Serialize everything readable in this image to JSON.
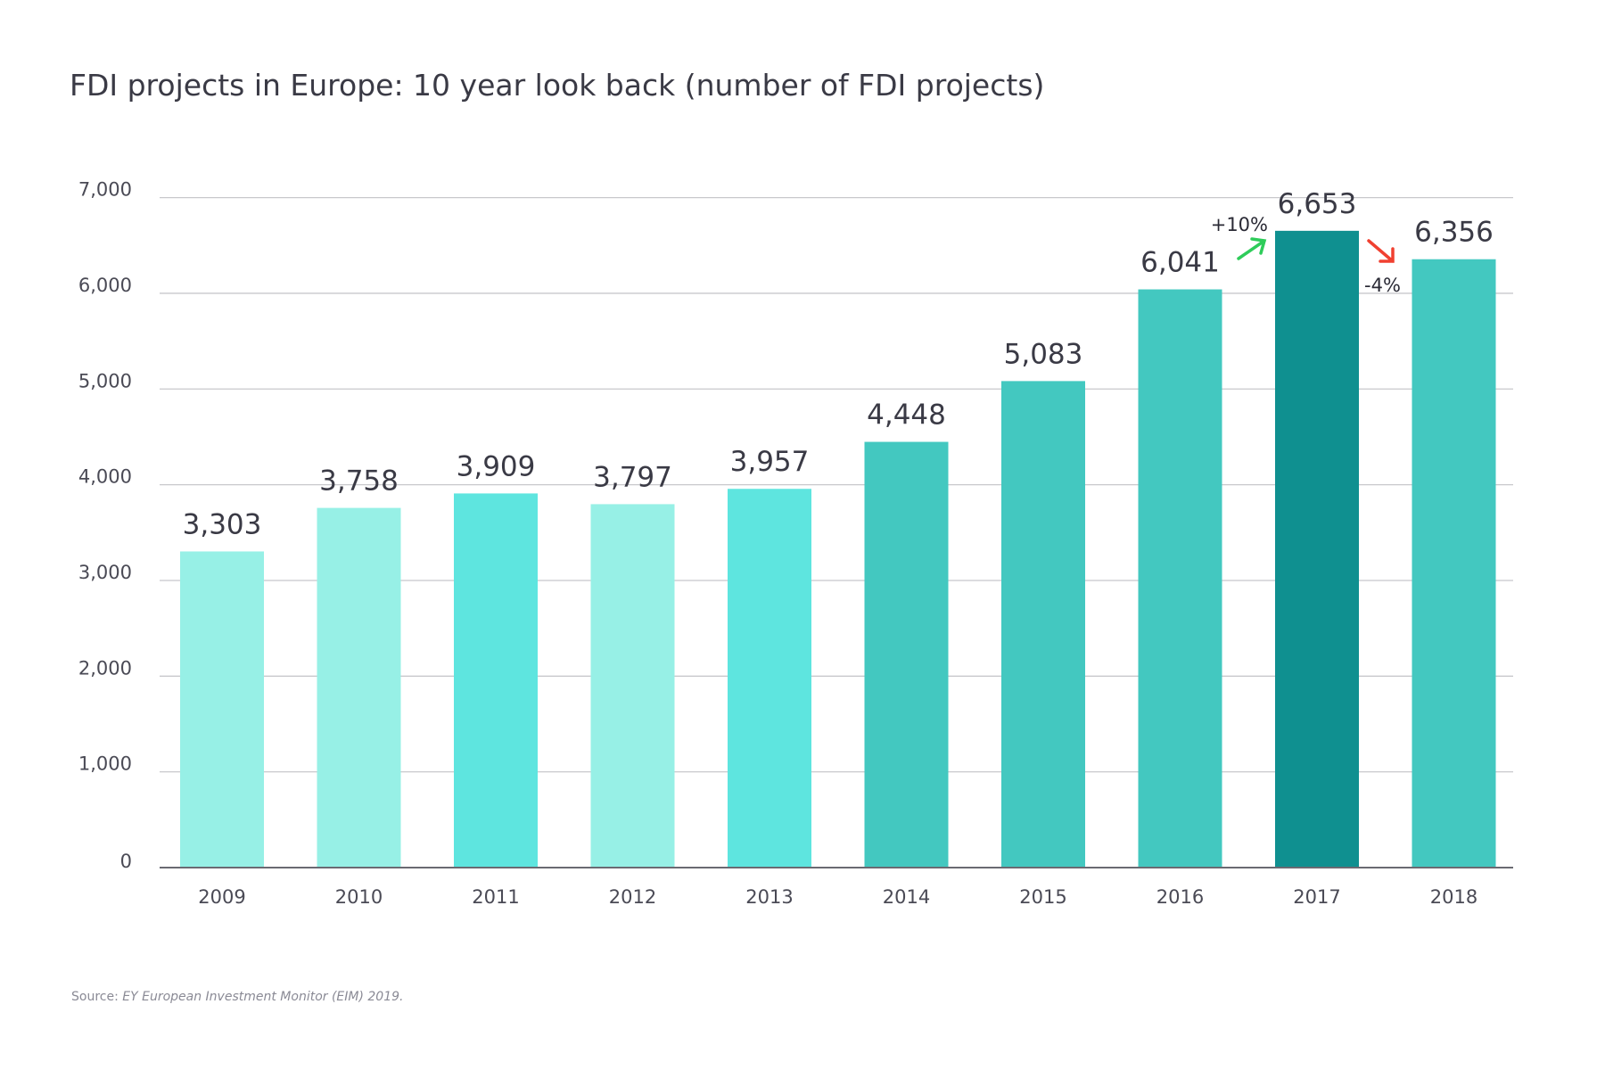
{
  "chart_data": {
    "type": "bar",
    "title": "FDI projects in Europe: 10 year look back (number of FDI projects)",
    "xlabel": "",
    "ylabel": "",
    "ylim": [
      0,
      7000
    ],
    "yticks": [
      0,
      1000,
      2000,
      3000,
      4000,
      5000,
      6000,
      7000
    ],
    "ytick_labels": [
      "0",
      "1,000",
      "2,000",
      "3,000",
      "4,000",
      "5,000",
      "6,000",
      "7,000"
    ],
    "grid": true,
    "categories": [
      "2009",
      "2010",
      "2011",
      "2012",
      "2013",
      "2014",
      "2015",
      "2016",
      "2017",
      "2018"
    ],
    "values": [
      3303,
      3758,
      3909,
      3797,
      3957,
      4448,
      5083,
      6041,
      6653,
      6356
    ],
    "value_labels": [
      "3,303",
      "3,758",
      "3,909",
      "3,797",
      "3,957",
      "4,448",
      "5,083",
      "6,041",
      "6,653",
      "6,356"
    ],
    "bar_colors": [
      "#97f0e6",
      "#97f0e6",
      "#5ee5df",
      "#97f0e6",
      "#5ee5df",
      "#43c8c0",
      "#43c8c0",
      "#43c8c0",
      "#0f9090",
      "#43c8c0"
    ],
    "annotations": [
      {
        "text": "+10%",
        "between": [
          "2016",
          "2017"
        ],
        "direction": "up",
        "color": "#2ecc5a"
      },
      {
        "text": "-4%",
        "between": [
          "2017",
          "2018"
        ],
        "direction": "down",
        "color": "#f04030"
      }
    ]
  },
  "source": {
    "prefix": "Source: ",
    "text": "EY European Investment Monitor (EIM) 2019."
  }
}
